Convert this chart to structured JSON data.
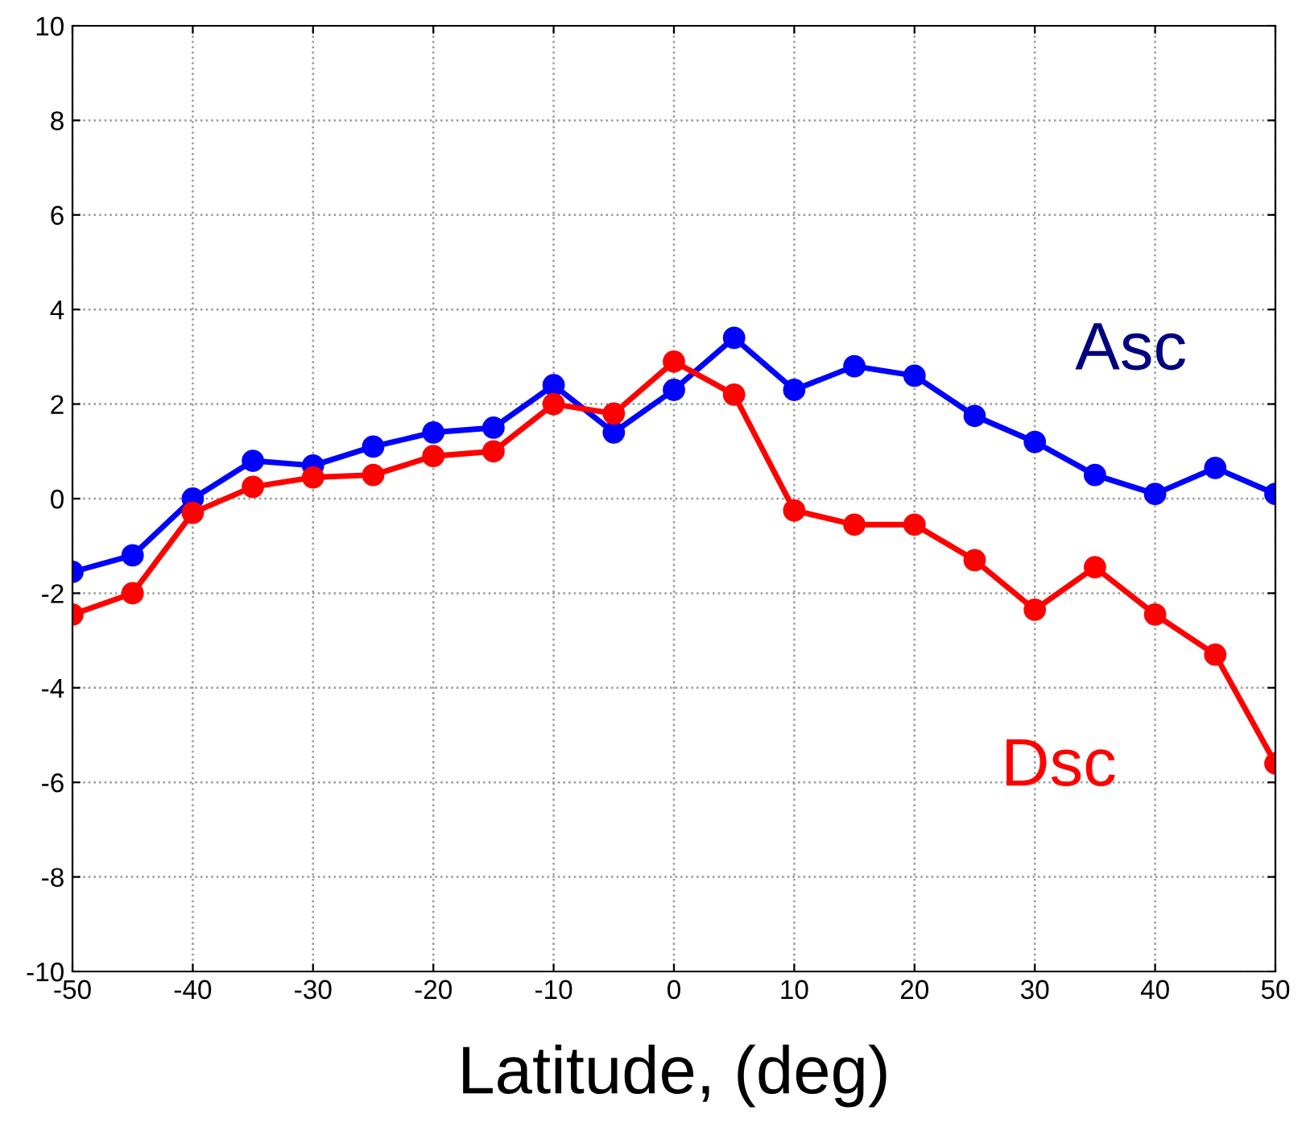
{
  "chart_data": {
    "type": "line",
    "xlabel": "Latitude, (deg)",
    "x": [
      -50,
      -45,
      -40,
      -35,
      -30,
      -25,
      -20,
      -15,
      -10,
      -5,
      0,
      5,
      10,
      15,
      20,
      25,
      30,
      35,
      40,
      45,
      50
    ],
    "series": [
      {
        "name": "Asc",
        "color": "#0000ff",
        "values": [
          -1.55,
          -1.2,
          0.0,
          0.8,
          0.7,
          1.1,
          1.4,
          1.5,
          2.4,
          1.4,
          2.3,
          3.4,
          2.3,
          2.8,
          2.6,
          1.75,
          1.2,
          0.5,
          0.1,
          0.65,
          0.1
        ]
      },
      {
        "name": "Dsc",
        "color": "#ff0000",
        "values": [
          -2.45,
          -2.0,
          -0.3,
          0.25,
          0.45,
          0.5,
          0.9,
          1.0,
          2.0,
          1.8,
          2.9,
          2.2,
          -0.25,
          -0.55,
          -0.55,
          -1.3,
          -2.35,
          -1.45,
          -2.45,
          -3.3,
          -5.6
        ]
      }
    ],
    "xlim": [
      -50,
      50
    ],
    "xticks": [
      -50,
      -40,
      -30,
      -20,
      -10,
      0,
      10,
      20,
      30,
      40,
      50
    ],
    "ylim": [
      -10,
      10
    ],
    "yticks": [
      -10,
      -8,
      -6,
      -4,
      -2,
      0,
      2,
      4,
      6,
      8,
      10
    ],
    "grid": true,
    "marker": "circle",
    "line_style": "solid",
    "legend": false
  }
}
